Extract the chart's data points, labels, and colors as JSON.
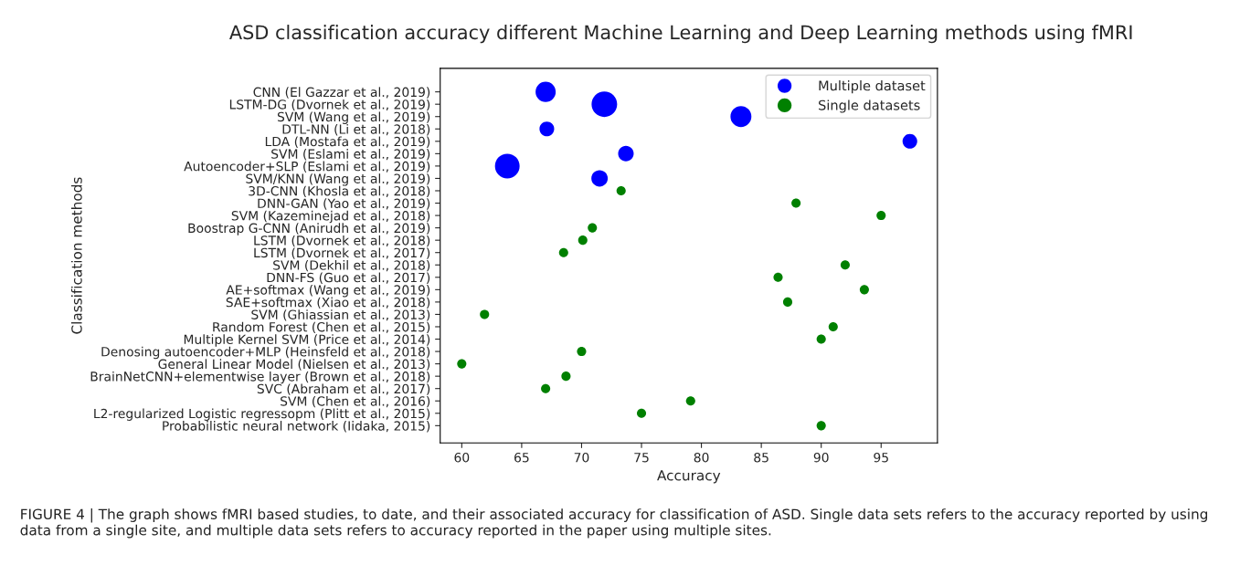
{
  "chart_data": {
    "type": "bubble",
    "orientation": "horizontal",
    "title": "ASD classification accuracy different Machine Learning and Deep Learning methods using fMRI",
    "xlabel": "Accuracy",
    "ylabel": "Classification methods",
    "categories": [
      "CNN (El Gazzar et al., 2019)",
      "LSTM-DG (Dvornek et al., 2019)",
      "SVM (Wang et al., 2019)",
      "DTL-NN (Li et al., 2018)",
      "LDA (Mostafa et al., 2019)",
      "SVM (Eslami et al., 2019)",
      "Autoencoder+SLP (Eslami et al., 2019)",
      "SVM/KNN (Wang et al., 2019)",
      "3D-CNN (Khosla et al., 2018)",
      "DNN-GAN (Yao et al., 2019)",
      "SVM (Kazeminejad et al., 2018)",
      "Boostrap G-CNN (Anirudh et al., 2019)",
      "LSTM (Dvornek et al., 2018)",
      "LSTM (Dvornek et al., 2017)",
      "SVM (Dekhil et al., 2018)",
      "DNN-FS (Guo et al., 2017)",
      "AE+softmax (Wang et al., 2019)",
      "SAE+softmax (Xiao et al., 2018)",
      "SVM (Ghiassian et al., 2013)",
      "Random Forest (Chen et al., 2015)",
      "Multiple Kernel SVM (Price et al., 2014)",
      "Denosing autoencoder+MLP (Heinsfeld et al., 2018)",
      "General Linear Model (Nielsen et al., 2013)",
      "BrainNetCNN+elementwise layer (Brown et al., 2018)",
      "SVC (Abraham et al., 2017)",
      "SVM (Chen et al., 2016)",
      "L2-regularized Logistic regressopm (Plitt et al., 2015)",
      "Probabilistic neural network (Iidaka, 2015)"
    ],
    "series": [
      {
        "name": "Multiple dataset",
        "color": "#0000ff",
        "values": [
          67.0,
          71.9,
          83.3,
          67.1,
          97.4,
          73.7,
          63.8,
          71.5,
          null,
          null,
          null,
          null,
          null,
          null,
          null,
          null,
          null,
          null,
          null,
          null,
          null,
          null,
          null,
          null,
          null,
          null,
          null,
          null
        ],
        "sizes": [
          0.62,
          1,
          0.67,
          0.33,
          0.33,
          0.37,
          0.93,
          0.41,
          null,
          null,
          null,
          null,
          null,
          null,
          null,
          null,
          null,
          null,
          null,
          null,
          null,
          null,
          null,
          null,
          null,
          null,
          null,
          null
        ]
      },
      {
        "name": "Single datasets",
        "color": "#008000",
        "values": [
          null,
          null,
          null,
          null,
          null,
          null,
          null,
          null,
          73.3,
          87.9,
          95.0,
          70.9,
          70.1,
          68.5,
          92.0,
          86.4,
          93.6,
          87.2,
          61.9,
          91.0,
          90.0,
          70.0,
          60.0,
          68.7,
          67.0,
          79.1,
          75.0,
          90.0
        ],
        "sizes": [
          null,
          null,
          null,
          null,
          null,
          null,
          null,
          null,
          0.13,
          0.13,
          0.13,
          0.13,
          0.13,
          0.13,
          0.13,
          0.13,
          0.13,
          0.13,
          0.13,
          0.13,
          0.13,
          0.13,
          0.13,
          0.13,
          0.13,
          0.13,
          0.13,
          0.13
        ]
      }
    ],
    "xlim": [
      58.2,
      99.7
    ],
    "xticks": [
      60,
      65,
      70,
      75,
      80,
      85,
      90,
      95
    ],
    "marker": "circle",
    "grid": false,
    "legend": "top right",
    "annotations": [
      "FIGURE 4 | The graph shows fMRI based studies, to date, and their associated accuracy for classification of ASD. Single data sets refers to the accuracy reported by using data from a single site, and multiple data sets refers to accuracy reported in the paper using multiple sites."
    ]
  }
}
